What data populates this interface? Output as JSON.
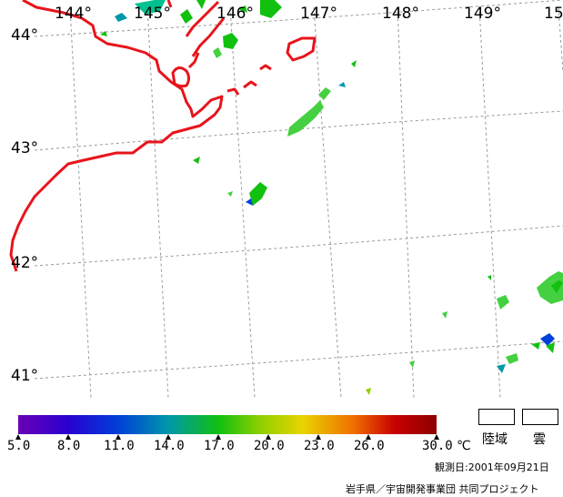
{
  "map": {
    "longitude_labels": [
      "144°",
      "145°",
      "146°",
      "147°",
      "148°",
      "149°",
      "15"
    ],
    "latitude_labels": [
      "44°",
      "43°",
      "42°",
      "41°"
    ],
    "coastline_color": "#e8141c",
    "grid_color": "#9a9a9a"
  },
  "legend": {
    "ticks": [
      "5.0",
      "8.0",
      "11.0",
      "14.0",
      "17.0",
      "20.0",
      "23.0",
      "26.0",
      "30.0"
    ],
    "unit": "℃",
    "colors": [
      "#6a00b4",
      "#2800d2",
      "#0040d8",
      "#0098a8",
      "#12c010",
      "#90d000",
      "#e8d400",
      "#f07000",
      "#c80000",
      "#8c0000"
    ],
    "land_label": "陸域",
    "cloud_label": "雲"
  },
  "observation_date": "観測日:2001年09月21日",
  "credit": "岩手県／宇宙開発事業団 共同プロジェクト"
}
